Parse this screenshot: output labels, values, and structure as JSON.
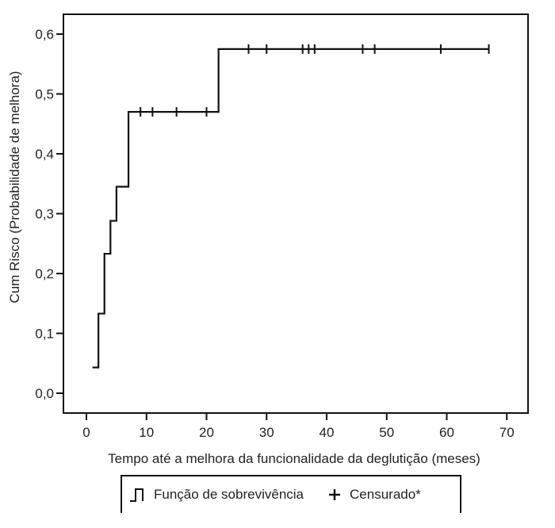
{
  "chart_data": {
    "type": "line",
    "xlabel": "Tempo até a melhora da funcionalidade da deglutição (meses)",
    "ylabel": "Cum Risco (Probabilidade de melhora)",
    "xlim": [
      0,
      70
    ],
    "ylim": [
      0,
      0.6
    ],
    "x_ticks": [
      0,
      10,
      20,
      30,
      40,
      50,
      60,
      70
    ],
    "x_tick_labels": [
      "0",
      "10",
      "20",
      "30",
      "40",
      "50",
      "60",
      "70"
    ],
    "y_ticks": [
      0.0,
      0.1,
      0.2,
      0.3,
      0.4,
      0.5,
      0.6
    ],
    "y_tick_labels": [
      "0,0",
      "0,1",
      "0,2",
      "0,3",
      "0,4",
      "0,5",
      "0,6"
    ],
    "grid": false,
    "legend_position": "bottom",
    "series": [
      {
        "name": "Função de sobrevivência",
        "step_points": [
          {
            "x": 1,
            "y": 0.043
          },
          {
            "x": 2,
            "y": 0.133
          },
          {
            "x": 3,
            "y": 0.233
          },
          {
            "x": 4,
            "y": 0.288
          },
          {
            "x": 5,
            "y": 0.345
          },
          {
            "x": 7,
            "y": 0.47
          },
          {
            "x": 22,
            "y": 0.575
          },
          {
            "x": 67,
            "y": 0.575
          }
        ]
      },
      {
        "name": "Censurado*",
        "censored_x": [
          9,
          11,
          15,
          20,
          27,
          30,
          36,
          37,
          38,
          46,
          48,
          59,
          67
        ]
      }
    ]
  },
  "legend": {
    "survival_label": "Função de sobrevivência",
    "censored_label": "Censurado*"
  },
  "colors": {
    "line": "#111111",
    "axis": "#111111",
    "text": "#222222"
  }
}
